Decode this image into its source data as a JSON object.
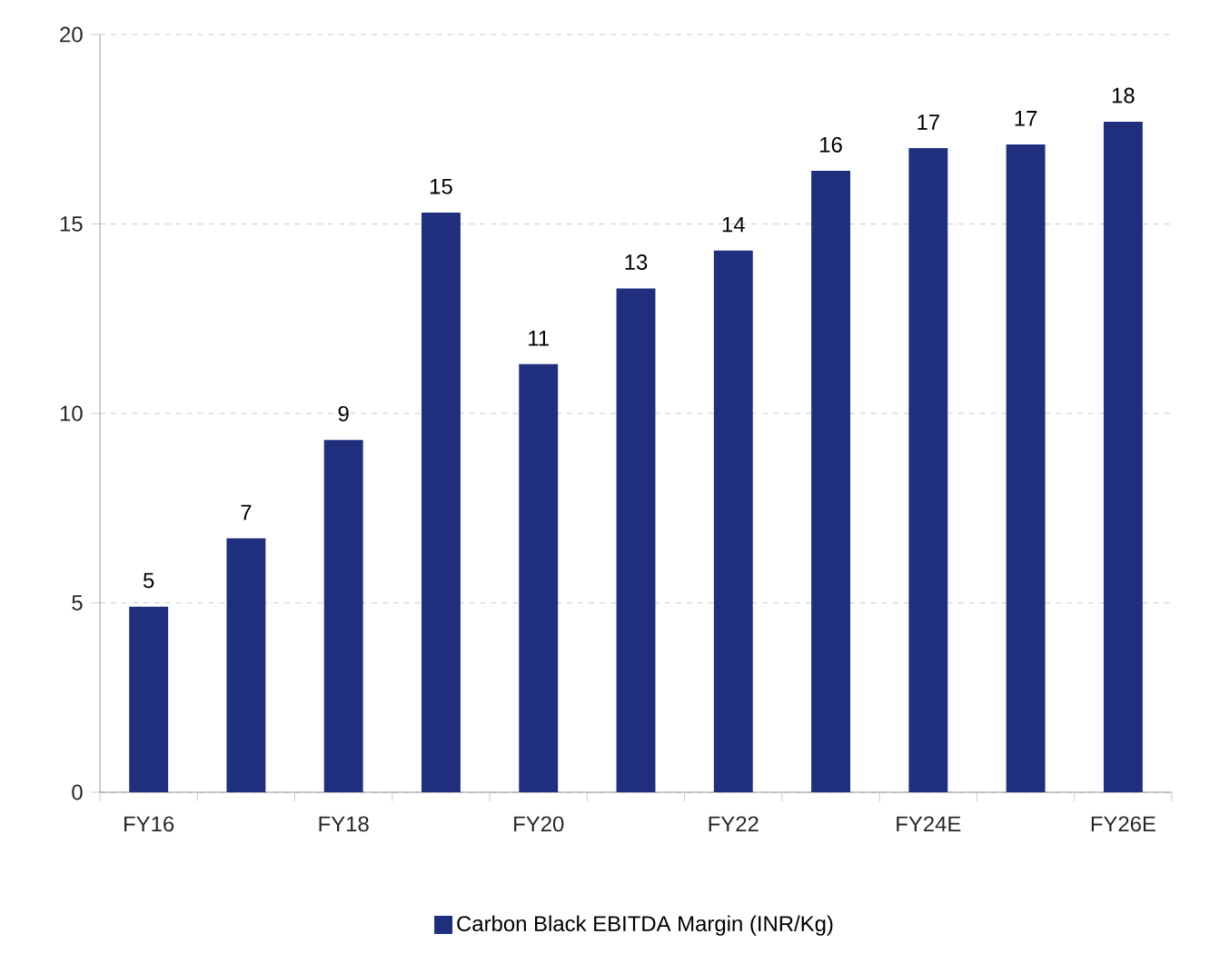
{
  "chart_data": {
    "type": "bar",
    "categories": [
      "FY16",
      null,
      "FY18",
      null,
      "FY20",
      null,
      "FY22",
      null,
      "FY24E",
      null,
      "FY26E"
    ],
    "series": [
      {
        "name": "Carbon Black EBITDA Margin (INR/Kg)",
        "color": "#1f2f7e",
        "values": [
          4.9,
          6.7,
          9.3,
          15.3,
          11.3,
          13.3,
          14.3,
          16.4,
          17.0,
          17.1,
          17.7
        ],
        "value_labels": [
          "5",
          "7",
          "9",
          "15",
          "11",
          "13",
          "14",
          "16",
          "17",
          "17",
          "18"
        ]
      }
    ],
    "ylim": [
      0,
      20
    ],
    "yticks": [
      0,
      5,
      10,
      15,
      20
    ],
    "grid": "y",
    "legend": "bottom"
  }
}
